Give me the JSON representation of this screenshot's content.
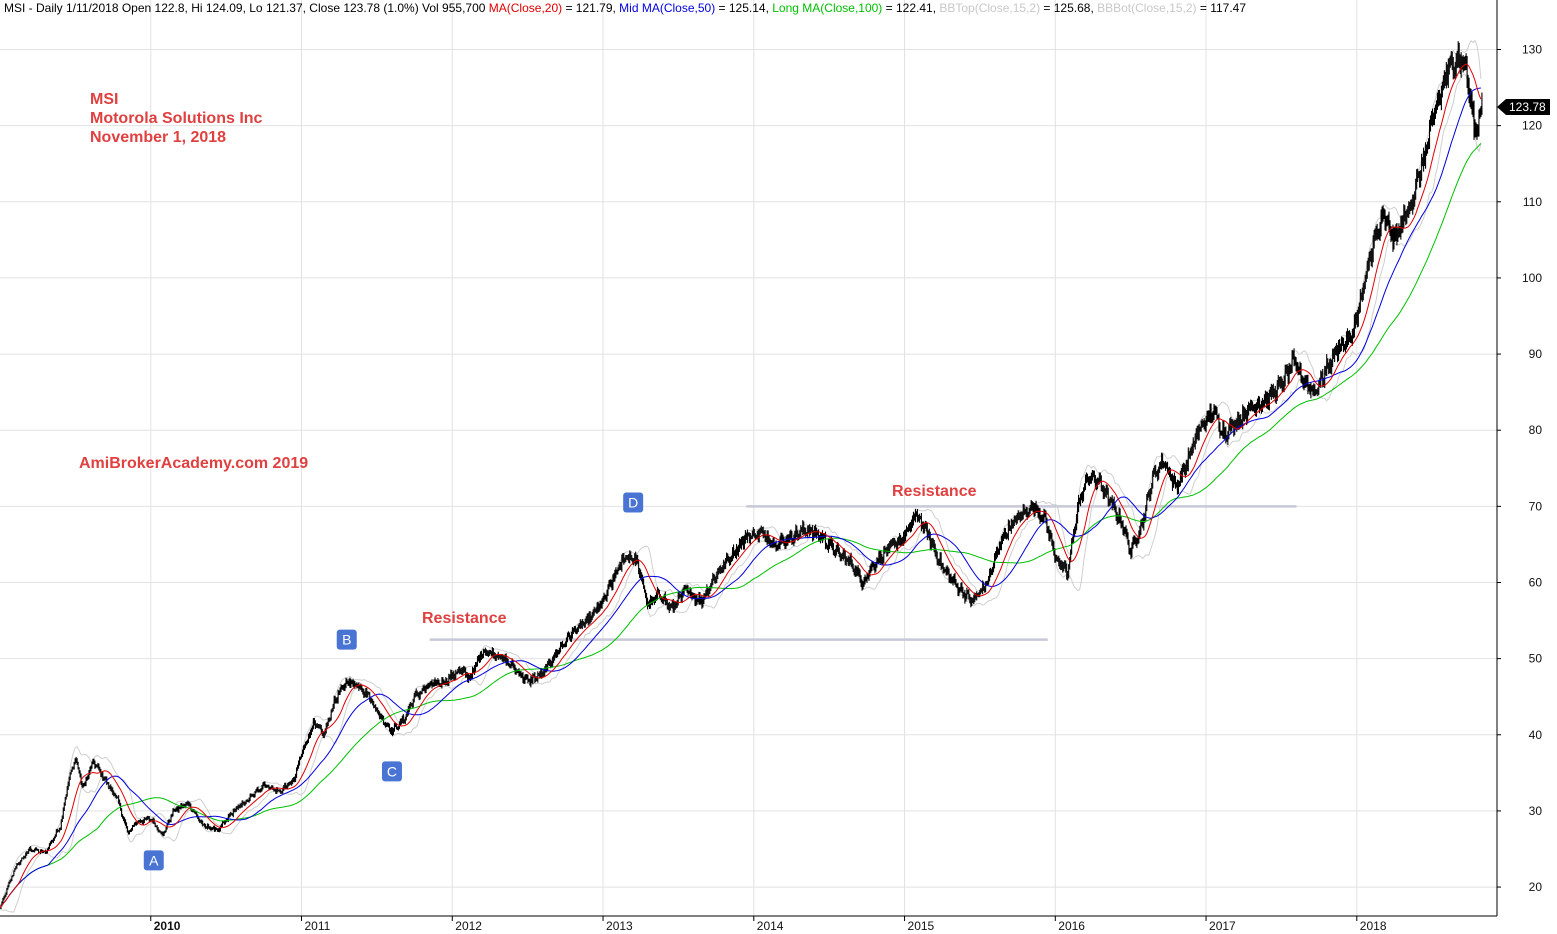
{
  "header": {
    "segments": [
      {
        "text": "MSI - Daily 1/11/2018 Open 122.8, Hi 124.09, Lo 121.37, Close 123.78 (1.0%) Vol 955,700 ",
        "color": "#000000"
      },
      {
        "text": "MA(Close,20)",
        "color": "#e00000"
      },
      {
        "text": " = 121.79, ",
        "color": "#000000"
      },
      {
        "text": "Mid MA(Close,50)",
        "color": "#0000e0"
      },
      {
        "text": " = 125.14, ",
        "color": "#000000"
      },
      {
        "text": "Long MA(Close,100)",
        "color": "#00c000"
      },
      {
        "text": " = 122.41, ",
        "color": "#000000"
      },
      {
        "text": "BBTop(Close,15,2)",
        "color": "#c8c8c8"
      },
      {
        "text": " = 125.68, ",
        "color": "#000000"
      },
      {
        "text": "BBBot(Close,15,2)",
        "color": "#c8c8c8"
      },
      {
        "text": " = 117.47",
        "color": "#000000"
      }
    ]
  },
  "annotations": {
    "ticker": "MSI",
    "company": "Motorola Solutions Inc",
    "date": "November 1, 2018",
    "watermark": "AmiBrokerAcademy.com  2019",
    "resistance_labels": [
      "Resistance",
      "Resistance"
    ]
  },
  "waves": [
    {
      "label": "A",
      "date": 2010.02,
      "price": 23.5
    },
    {
      "label": "B",
      "date": 2011.3,
      "price": 52.5
    },
    {
      "label": "C",
      "date": 2011.6,
      "price": 35.2
    },
    {
      "label": "D",
      "date": 2013.2,
      "price": 70.5
    }
  ],
  "last_price_tag": "123.78",
  "chart_data": {
    "type": "candlestick",
    "ticker": "MSI",
    "x_axis": {
      "labels": [
        "2010",
        "2011",
        "2012",
        "2013",
        "2014",
        "2015",
        "2016",
        "2017",
        "2018"
      ],
      "range": [
        2009.0,
        2018.93
      ]
    },
    "y_axis": {
      "ticks": [
        20,
        30,
        40,
        50,
        60,
        70,
        80,
        90,
        100,
        110,
        120,
        130
      ],
      "range": [
        16.2,
        136.5
      ],
      "position": "right"
    },
    "grid": true,
    "resistance_lines": [
      {
        "price": 52.5,
        "from": 2011.85,
        "to": 2015.95
      },
      {
        "price": 70.0,
        "from": 2013.95,
        "to": 2017.6
      }
    ],
    "price_path": [
      [
        2009.0,
        17.2
      ],
      [
        2009.1,
        22.5
      ],
      [
        2009.2,
        25.0
      ],
      [
        2009.3,
        24.5
      ],
      [
        2009.4,
        28.0
      ],
      [
        2009.45,
        33.5
      ],
      [
        2009.5,
        37.0
      ],
      [
        2009.55,
        33.0
      ],
      [
        2009.62,
        36.5
      ],
      [
        2009.7,
        34.0
      ],
      [
        2009.78,
        31.5
      ],
      [
        2009.85,
        27.0
      ],
      [
        2009.9,
        28.5
      ],
      [
        2010.0,
        29.0
      ],
      [
        2010.08,
        26.8
      ],
      [
        2010.15,
        30.0
      ],
      [
        2010.25,
        31.0
      ],
      [
        2010.35,
        28.0
      ],
      [
        2010.45,
        27.5
      ],
      [
        2010.55,
        30.0
      ],
      [
        2010.65,
        31.5
      ],
      [
        2010.75,
        33.5
      ],
      [
        2010.85,
        32.5
      ],
      [
        2010.95,
        34.0
      ],
      [
        2011.0,
        37.5
      ],
      [
        2011.08,
        41.5
      ],
      [
        2011.15,
        40.0
      ],
      [
        2011.22,
        44.5
      ],
      [
        2011.3,
        47.0
      ],
      [
        2011.38,
        46.5
      ],
      [
        2011.45,
        45.0
      ],
      [
        2011.52,
        42.5
      ],
      [
        2011.6,
        40.5
      ],
      [
        2011.68,
        42.0
      ],
      [
        2011.75,
        45.0
      ],
      [
        2011.85,
        46.5
      ],
      [
        2011.95,
        47.0
      ],
      [
        2012.05,
        48.5
      ],
      [
        2012.12,
        47.5
      ],
      [
        2012.2,
        51.0
      ],
      [
        2012.3,
        50.5
      ],
      [
        2012.4,
        49.0
      ],
      [
        2012.5,
        47.0
      ],
      [
        2012.6,
        48.0
      ],
      [
        2012.7,
        51.0
      ],
      [
        2012.8,
        53.5
      ],
      [
        2012.9,
        55.0
      ],
      [
        2013.0,
        57.5
      ],
      [
        2013.08,
        61.0
      ],
      [
        2013.15,
        63.5
      ],
      [
        2013.22,
        63.0
      ],
      [
        2013.3,
        57.0
      ],
      [
        2013.38,
        58.5
      ],
      [
        2013.45,
        56.5
      ],
      [
        2013.55,
        59.0
      ],
      [
        2013.65,
        57.5
      ],
      [
        2013.75,
        61.0
      ],
      [
        2013.85,
        63.5
      ],
      [
        2013.95,
        66.0
      ],
      [
        2014.05,
        66.5
      ],
      [
        2014.15,
        65.0
      ],
      [
        2014.25,
        66.0
      ],
      [
        2014.35,
        67.0
      ],
      [
        2014.45,
        66.0
      ],
      [
        2014.55,
        64.0
      ],
      [
        2014.65,
        62.5
      ],
      [
        2014.72,
        60.0
      ],
      [
        2014.8,
        62.5
      ],
      [
        2014.9,
        64.5
      ],
      [
        2015.0,
        66.0
      ],
      [
        2015.08,
        69.0
      ],
      [
        2015.15,
        66.5
      ],
      [
        2015.25,
        62.0
      ],
      [
        2015.35,
        59.5
      ],
      [
        2015.45,
        57.5
      ],
      [
        2015.55,
        60.0
      ],
      [
        2015.65,
        66.0
      ],
      [
        2015.75,
        68.5
      ],
      [
        2015.85,
        70.0
      ],
      [
        2015.93,
        68.5
      ],
      [
        2016.0,
        63.5
      ],
      [
        2016.08,
        61.0
      ],
      [
        2016.15,
        70.0
      ],
      [
        2016.22,
        74.0
      ],
      [
        2016.3,
        73.0
      ],
      [
        2016.38,
        70.0
      ],
      [
        2016.45,
        67.5
      ],
      [
        2016.5,
        64.0
      ],
      [
        2016.58,
        68.0
      ],
      [
        2016.65,
        74.0
      ],
      [
        2016.72,
        76.0
      ],
      [
        2016.8,
        72.5
      ],
      [
        2016.88,
        76.0
      ],
      [
        2016.95,
        80.0
      ],
      [
        2017.05,
        82.5
      ],
      [
        2017.12,
        79.5
      ],
      [
        2017.2,
        81.0
      ],
      [
        2017.3,
        83.0
      ],
      [
        2017.4,
        84.0
      ],
      [
        2017.5,
        86.0
      ],
      [
        2017.58,
        89.0
      ],
      [
        2017.65,
        86.5
      ],
      [
        2017.72,
        85.0
      ],
      [
        2017.8,
        88.0
      ],
      [
        2017.88,
        91.0
      ],
      [
        2017.96,
        92.0
      ],
      [
        2018.04,
        98.0
      ],
      [
        2018.1,
        104.0
      ],
      [
        2018.18,
        108.0
      ],
      [
        2018.25,
        105.0
      ],
      [
        2018.32,
        108.0
      ],
      [
        2018.38,
        111.0
      ],
      [
        2018.45,
        116.0
      ],
      [
        2018.52,
        122.0
      ],
      [
        2018.6,
        127.0
      ],
      [
        2018.66,
        129.0
      ],
      [
        2018.72,
        128.0
      ],
      [
        2018.77,
        121.0
      ],
      [
        2018.8,
        119.0
      ],
      [
        2018.83,
        123.78
      ]
    ]
  }
}
